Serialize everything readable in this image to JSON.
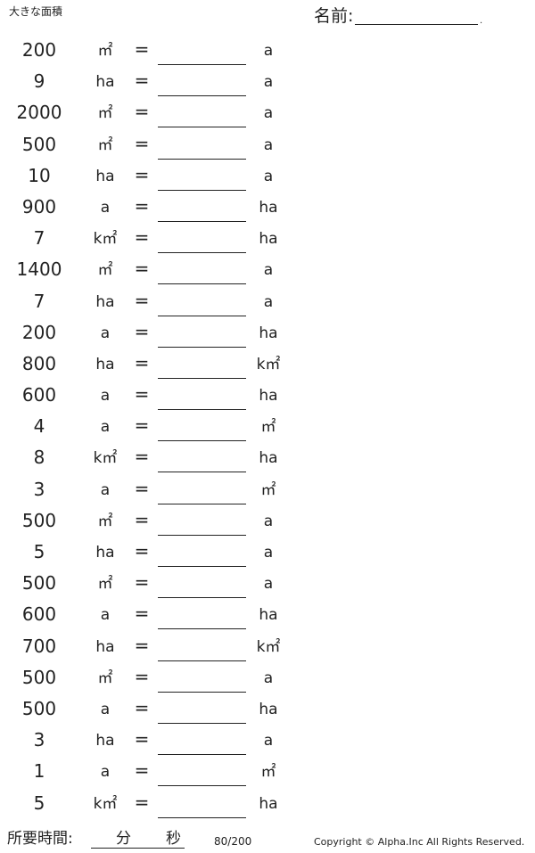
{
  "worksheet": {
    "title": "大きな面積",
    "name_label": "名前:",
    "name_suffix": ".",
    "problems": [
      {
        "value": "200",
        "from_unit": "㎡",
        "equals": "=",
        "to_unit": "a"
      },
      {
        "value": "9",
        "from_unit": "ha",
        "equals": "=",
        "to_unit": "a"
      },
      {
        "value": "2000",
        "from_unit": "㎡",
        "equals": "=",
        "to_unit": "a"
      },
      {
        "value": "500",
        "from_unit": "㎡",
        "equals": "=",
        "to_unit": "a"
      },
      {
        "value": "10",
        "from_unit": "ha",
        "equals": "=",
        "to_unit": "a"
      },
      {
        "value": "900",
        "from_unit": "a",
        "equals": "=",
        "to_unit": "ha"
      },
      {
        "value": "7",
        "from_unit": "k㎡",
        "equals": "=",
        "to_unit": "ha"
      },
      {
        "value": "1400",
        "from_unit": "㎡",
        "equals": "=",
        "to_unit": "a"
      },
      {
        "value": "7",
        "from_unit": "ha",
        "equals": "=",
        "to_unit": "a"
      },
      {
        "value": "200",
        "from_unit": "a",
        "equals": "=",
        "to_unit": "ha"
      },
      {
        "value": "800",
        "from_unit": "ha",
        "equals": "=",
        "to_unit": "k㎡"
      },
      {
        "value": "600",
        "from_unit": "a",
        "equals": "=",
        "to_unit": "ha"
      },
      {
        "value": "4",
        "from_unit": "a",
        "equals": "=",
        "to_unit": "㎡"
      },
      {
        "value": "8",
        "from_unit": "k㎡",
        "equals": "=",
        "to_unit": "ha"
      },
      {
        "value": "3",
        "from_unit": "a",
        "equals": "=",
        "to_unit": "㎡"
      },
      {
        "value": "500",
        "from_unit": "㎡",
        "equals": "=",
        "to_unit": "a"
      },
      {
        "value": "5",
        "from_unit": "ha",
        "equals": "=",
        "to_unit": "a"
      },
      {
        "value": "500",
        "from_unit": "㎡",
        "equals": "=",
        "to_unit": "a"
      },
      {
        "value": "600",
        "from_unit": "a",
        "equals": "=",
        "to_unit": "ha"
      },
      {
        "value": "700",
        "from_unit": "ha",
        "equals": "=",
        "to_unit": "k㎡"
      },
      {
        "value": "500",
        "from_unit": "㎡",
        "equals": "=",
        "to_unit": "a"
      },
      {
        "value": "500",
        "from_unit": "a",
        "equals": "=",
        "to_unit": "ha"
      },
      {
        "value": "3",
        "from_unit": "ha",
        "equals": "=",
        "to_unit": "a"
      },
      {
        "value": "1",
        "from_unit": "a",
        "equals": "=",
        "to_unit": "㎡"
      },
      {
        "value": "5",
        "from_unit": "k㎡",
        "equals": "=",
        "to_unit": "ha"
      }
    ]
  },
  "footer": {
    "time_label": "所要時間:",
    "minutes_label": "分",
    "seconds_label": "秒",
    "page_number": "80/200",
    "copyright": "Copyright © Alpha.Inc All Rights Reserved."
  }
}
